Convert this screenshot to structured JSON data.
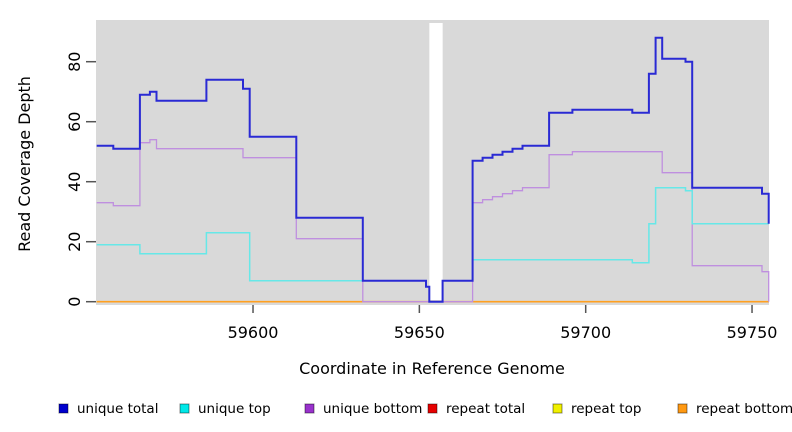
{
  "figure": {
    "background": "#ffffff",
    "panel_background": "#d9d9d9",
    "gap_band_color": "#ffffff",
    "tick_color": "#555555",
    "text_color": "#000000"
  },
  "chart_data": {
    "type": "line",
    "step": "after",
    "title": "",
    "xlabel": "Coordinate in Reference Genome",
    "ylabel": "Read Coverage Depth",
    "xlim": [
      59552.8,
      59755.1
    ],
    "ylim": [
      -1.1,
      93.9
    ],
    "x_ticks": [
      59600,
      59650,
      59700,
      59750
    ],
    "y_ticks": [
      0,
      20,
      40,
      60,
      80
    ],
    "y_tick_labels_rotated": true,
    "grid": false,
    "legend_position": "bottom",
    "gap_region": {
      "x_start": 59653,
      "x_end": 59657
    },
    "draw_order": [
      3,
      4,
      5,
      2,
      1,
      0
    ],
    "series": [
      {
        "name": "unique total",
        "color": "#2a2ad4",
        "legend_color": "#0000cd",
        "width": 2,
        "points": [
          [
            59553,
            52
          ],
          [
            59558,
            51
          ],
          [
            59566,
            69
          ],
          [
            59569,
            70
          ],
          [
            59571,
            67
          ],
          [
            59586,
            74
          ],
          [
            59597,
            71
          ],
          [
            59599,
            55
          ],
          [
            59613,
            28
          ],
          [
            59633,
            7
          ],
          [
            59652,
            5
          ],
          [
            59653,
            0
          ],
          [
            59657,
            7
          ],
          [
            59666,
            47
          ],
          [
            59669,
            48
          ],
          [
            59672,
            49
          ],
          [
            59675,
            50
          ],
          [
            59678,
            51
          ],
          [
            59681,
            52
          ],
          [
            59689,
            63
          ],
          [
            59696,
            64
          ],
          [
            59714,
            63
          ],
          [
            59719,
            76
          ],
          [
            59721,
            88
          ],
          [
            59723,
            81
          ],
          [
            59730,
            80
          ],
          [
            59732,
            38
          ],
          [
            59753,
            36
          ],
          [
            59755,
            26
          ]
        ]
      },
      {
        "name": "unique top",
        "color": "#66e8e8",
        "legend_color": "#00e8e8",
        "width": 1.5,
        "points": [
          [
            59553,
            19
          ],
          [
            59566,
            16
          ],
          [
            59586,
            23
          ],
          [
            59599,
            7
          ],
          [
            59652,
            5
          ],
          [
            59653,
            0
          ],
          [
            59657,
            7
          ],
          [
            59666,
            14
          ],
          [
            59714,
            13
          ],
          [
            59719,
            26
          ],
          [
            59721,
            38
          ],
          [
            59730,
            37
          ],
          [
            59732,
            26
          ],
          [
            59755,
            26
          ]
        ]
      },
      {
        "name": "unique bottom",
        "color": "#bf8fdf",
        "legend_color": "#9932cc",
        "width": 1.3,
        "points": [
          [
            59553,
            33
          ],
          [
            59558,
            32
          ],
          [
            59566,
            53
          ],
          [
            59569,
            54
          ],
          [
            59571,
            51
          ],
          [
            59597,
            48
          ],
          [
            59613,
            21
          ],
          [
            59633,
            0
          ],
          [
            59666,
            33
          ],
          [
            59669,
            34
          ],
          [
            59672,
            35
          ],
          [
            59675,
            36
          ],
          [
            59678,
            37
          ],
          [
            59681,
            38
          ],
          [
            59689,
            49
          ],
          [
            59696,
            50
          ],
          [
            59723,
            43
          ],
          [
            59732,
            12
          ],
          [
            59753,
            10
          ],
          [
            59755,
            0
          ]
        ]
      },
      {
        "name": "repeat total",
        "color": "#e05555",
        "legend_color": "#e60000",
        "width": 1.3,
        "points": [
          [
            59553,
            0
          ],
          [
            59755,
            0
          ]
        ]
      },
      {
        "name": "repeat top",
        "color": "#f0f000",
        "legend_color": "#f0f000",
        "width": 1.3,
        "points": [
          [
            59553,
            0
          ],
          [
            59755,
            0
          ]
        ]
      },
      {
        "name": "repeat bottom",
        "color": "#ffa020",
        "legend_color": "#ff9912",
        "width": 1.6,
        "points": [
          [
            59553,
            0
          ],
          [
            59755,
            0
          ]
        ]
      }
    ]
  },
  "legend": {
    "items": [
      {
        "label": "unique total",
        "color": "#0000cd"
      },
      {
        "label": "unique top",
        "color": "#00e8e8"
      },
      {
        "label": "unique bottom",
        "color": "#9932cc"
      },
      {
        "label": "repeat total",
        "color": "#e60000"
      },
      {
        "label": "repeat top",
        "color": "#f0f000"
      },
      {
        "label": "repeat bottom",
        "color": "#ff9912"
      }
    ]
  }
}
